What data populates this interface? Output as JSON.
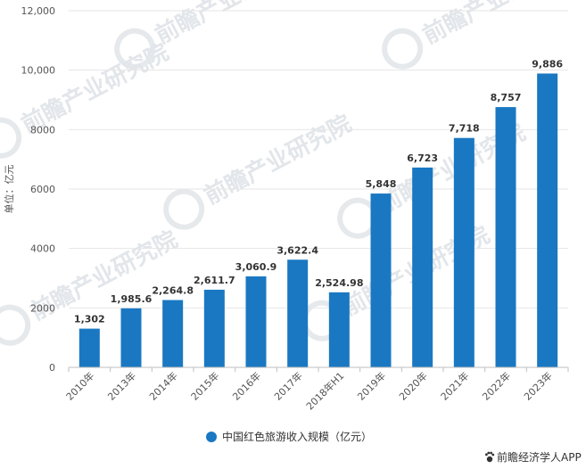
{
  "chart_data": {
    "type": "bar",
    "categories": [
      "2010年",
      "2013年",
      "2014年",
      "2015年",
      "2016年",
      "2017年",
      "2018年H1",
      "2019年",
      "2020年",
      "2021年",
      "2022年",
      "2023年"
    ],
    "series": [
      {
        "name": "中国红色旅游收入规模（亿元）",
        "values": [
          1302,
          1985.6,
          2264.8,
          2611.7,
          3060.9,
          3622.4,
          2524.98,
          5848,
          6723,
          7718,
          8757,
          9886
        ],
        "labels": [
          "1,302",
          "1,985.6",
          "2,264.8",
          "2,611.7",
          "3,060.9",
          "3,622.4",
          "2,524.98",
          "5,848",
          "6,723",
          "7,718",
          "8,757",
          "9,886"
        ],
        "color": "#1a78c2"
      }
    ],
    "yticks": [
      0,
      2000,
      4000,
      6000,
      8000,
      10000,
      12000
    ],
    "ytick_labels": [
      "0",
      "2000",
      "4000",
      "6000",
      "8000",
      "10,000",
      "12,000"
    ],
    "ylim": [
      0,
      12000
    ],
    "ylabel": "单位：亿元",
    "legend_position": "bottom-center",
    "grid": true
  },
  "brand": {
    "text": "前瞻经济学人APP",
    "icon": "paw-logo-icon"
  },
  "watermark": {
    "text": "前瞻产业研究院"
  }
}
